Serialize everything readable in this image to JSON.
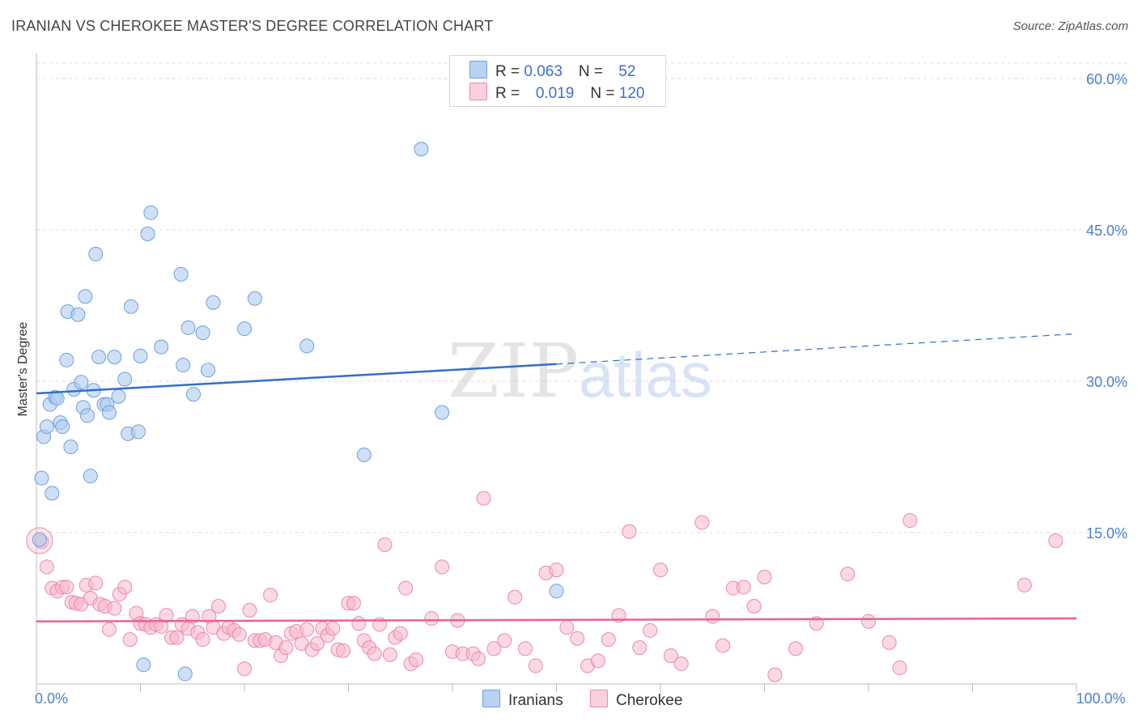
{
  "header": {
    "title": "IRANIAN VS CHEROKEE MASTER'S DEGREE CORRELATION CHART",
    "source": "Source: ZipAtlas.com"
  },
  "legend": {
    "iranians": {
      "r_label": "R = ",
      "r_value": "0.063",
      "n_label": "N = ",
      "n_value": "52"
    },
    "cherokee": {
      "r_label": "R = ",
      "r_value": "0.019",
      "n_label": "N = ",
      "n_value": "120"
    }
  },
  "bottom_legend": {
    "iranians": "Iranians",
    "cherokee": "Cherokee"
  },
  "watermark": {
    "zip": "ZIP",
    "atlas": "atlas"
  },
  "colors": {
    "iranians_fill": "#aecbf0",
    "iranians_stroke": "#6f9fdc",
    "iranians_line": "#2f6fcc",
    "cherokee_fill": "#f7b8cb",
    "cherokee_stroke": "#ea8aa8",
    "cherokee_line": "#e8638f",
    "tick": "#4a7fd4"
  },
  "chart_data": {
    "type": "scatter",
    "title": "IRANIAN VS CHEROKEE MASTER'S DEGREE CORRELATION CHART",
    "xlabel": "",
    "ylabel": "Master's Degree",
    "xlim": [
      0,
      100
    ],
    "ylim": [
      0,
      62
    ],
    "x_tick_labels": [
      {
        "value": 0,
        "label": "0.0%"
      },
      {
        "value": 100,
        "label": "100.0%"
      }
    ],
    "y_tick_labels": [
      {
        "value": 15,
        "label": "15.0%"
      },
      {
        "value": 30,
        "label": "30.0%"
      },
      {
        "value": 45,
        "label": "45.0%"
      },
      {
        "value": 60,
        "label": "60.0%"
      }
    ],
    "series": [
      {
        "name": "Iranians",
        "r": 0.063,
        "n": 52,
        "trend": {
          "x0": 0,
          "y0": 28.8,
          "x1": 50,
          "y1": 31.7,
          "dashed_to_x": 100,
          "dashed_to_y": 34.7
        },
        "points": [
          [
            0.3,
            14.3
          ],
          [
            0.5,
            20.4
          ],
          [
            0.7,
            24.5
          ],
          [
            1.0,
            25.5
          ],
          [
            1.3,
            27.7
          ],
          [
            1.5,
            18.9
          ],
          [
            1.8,
            28.4
          ],
          [
            2.0,
            28.3
          ],
          [
            2.3,
            25.9
          ],
          [
            2.5,
            25.5
          ],
          [
            2.9,
            32.1
          ],
          [
            3.0,
            36.9
          ],
          [
            3.3,
            23.5
          ],
          [
            3.6,
            29.2
          ],
          [
            4.0,
            36.6
          ],
          [
            4.3,
            29.9
          ],
          [
            4.5,
            27.4
          ],
          [
            4.7,
            38.4
          ],
          [
            4.9,
            26.6
          ],
          [
            5.2,
            20.6
          ],
          [
            5.5,
            29.1
          ],
          [
            5.7,
            42.6
          ],
          [
            6.0,
            32.4
          ],
          [
            6.5,
            27.7
          ],
          [
            6.8,
            27.7
          ],
          [
            7.0,
            26.9
          ],
          [
            7.5,
            32.4
          ],
          [
            7.9,
            28.5
          ],
          [
            8.5,
            30.2
          ],
          [
            8.8,
            24.8
          ],
          [
            9.1,
            37.4
          ],
          [
            9.8,
            25.0
          ],
          [
            10.0,
            32.5
          ],
          [
            10.3,
            1.9
          ],
          [
            10.7,
            44.6
          ],
          [
            11.0,
            46.7
          ],
          [
            12.0,
            33.4
          ],
          [
            13.9,
            40.6
          ],
          [
            14.1,
            31.6
          ],
          [
            14.3,
            1.0
          ],
          [
            14.6,
            35.3
          ],
          [
            15.1,
            28.7
          ],
          [
            16.0,
            34.8
          ],
          [
            16.5,
            31.1
          ],
          [
            17.0,
            37.8
          ],
          [
            20.0,
            35.2
          ],
          [
            21.0,
            38.2
          ],
          [
            26.0,
            33.5
          ],
          [
            31.5,
            22.7
          ],
          [
            37.0,
            53.0
          ],
          [
            39.0,
            26.9
          ],
          [
            50.0,
            9.2
          ]
        ]
      },
      {
        "name": "Cherokee",
        "r": 0.019,
        "n": 120,
        "trend": {
          "x0": 0,
          "y0": 6.2,
          "x1": 100,
          "y1": 6.5
        },
        "points": [
          [
            0.5,
            14.1
          ],
          [
            1.0,
            11.6
          ],
          [
            1.5,
            9.5
          ],
          [
            2.0,
            9.2
          ],
          [
            2.5,
            9.6
          ],
          [
            2.9,
            9.6
          ],
          [
            3.4,
            8.1
          ],
          [
            3.8,
            8.0
          ],
          [
            4.3,
            7.9
          ],
          [
            4.8,
            9.8
          ],
          [
            5.2,
            8.5
          ],
          [
            5.7,
            10.0
          ],
          [
            6.1,
            7.9
          ],
          [
            6.6,
            7.7
          ],
          [
            7.0,
            5.4
          ],
          [
            7.5,
            7.5
          ],
          [
            8.0,
            8.9
          ],
          [
            8.5,
            9.6
          ],
          [
            9.0,
            4.4
          ],
          [
            9.6,
            7.0
          ],
          [
            10.0,
            6.0
          ],
          [
            10.5,
            5.9
          ],
          [
            11.0,
            5.6
          ],
          [
            11.5,
            5.9
          ],
          [
            12.0,
            5.7
          ],
          [
            12.5,
            6.8
          ],
          [
            13.0,
            4.6
          ],
          [
            13.5,
            4.6
          ],
          [
            14.0,
            5.9
          ],
          [
            14.6,
            5.5
          ],
          [
            15.0,
            6.7
          ],
          [
            15.5,
            5.1
          ],
          [
            16.0,
            4.4
          ],
          [
            16.6,
            6.7
          ],
          [
            17.0,
            5.6
          ],
          [
            17.5,
            7.7
          ],
          [
            18.0,
            5.0
          ],
          [
            18.5,
            5.6
          ],
          [
            19.0,
            5.3
          ],
          [
            19.5,
            4.9
          ],
          [
            20.0,
            1.5
          ],
          [
            20.5,
            7.3
          ],
          [
            21.0,
            4.3
          ],
          [
            21.5,
            4.3
          ],
          [
            22.0,
            4.4
          ],
          [
            22.5,
            8.8
          ],
          [
            23.0,
            4.1
          ],
          [
            23.5,
            2.8
          ],
          [
            24.0,
            3.6
          ],
          [
            24.5,
            5.0
          ],
          [
            25.0,
            5.2
          ],
          [
            25.5,
            4.0
          ],
          [
            26.0,
            5.4
          ],
          [
            26.5,
            3.4
          ],
          [
            27.0,
            4.0
          ],
          [
            27.5,
            5.5
          ],
          [
            28.0,
            4.8
          ],
          [
            28.5,
            5.5
          ],
          [
            29.0,
            3.4
          ],
          [
            29.5,
            3.3
          ],
          [
            30.0,
            8.0
          ],
          [
            30.5,
            8.0
          ],
          [
            31.0,
            6.0
          ],
          [
            31.5,
            4.3
          ],
          [
            32.0,
            3.6
          ],
          [
            32.5,
            3.0
          ],
          [
            33.0,
            5.9
          ],
          [
            33.5,
            13.8
          ],
          [
            34.0,
            2.9
          ],
          [
            34.5,
            4.6
          ],
          [
            35.0,
            5.0
          ],
          [
            35.5,
            9.5
          ],
          [
            36.0,
            2.0
          ],
          [
            36.5,
            2.4
          ],
          [
            38.0,
            6.5
          ],
          [
            39.0,
            11.6
          ],
          [
            40.0,
            3.2
          ],
          [
            40.5,
            6.3
          ],
          [
            41.0,
            3.0
          ],
          [
            42.0,
            3.0
          ],
          [
            42.5,
            2.5
          ],
          [
            43.0,
            18.4
          ],
          [
            44.0,
            3.5
          ],
          [
            45.0,
            4.3
          ],
          [
            46.0,
            8.6
          ],
          [
            47.0,
            3.5
          ],
          [
            48.0,
            1.8
          ],
          [
            49.0,
            11.0
          ],
          [
            50.0,
            11.3
          ],
          [
            51.0,
            5.6
          ],
          [
            52.0,
            4.5
          ],
          [
            53.0,
            1.8
          ],
          [
            54.0,
            2.3
          ],
          [
            55.0,
            4.4
          ],
          [
            56.0,
            6.8
          ],
          [
            57.0,
            15.1
          ],
          [
            58.0,
            3.6
          ],
          [
            59.0,
            5.3
          ],
          [
            60.0,
            11.3
          ],
          [
            61.0,
            2.8
          ],
          [
            62.0,
            2.0
          ],
          [
            64.0,
            16.0
          ],
          [
            65.0,
            6.7
          ],
          [
            66.0,
            3.8
          ],
          [
            67.0,
            9.5
          ],
          [
            68.0,
            9.6
          ],
          [
            69.0,
            7.7
          ],
          [
            70.0,
            10.6
          ],
          [
            71.0,
            0.9
          ],
          [
            73.0,
            3.5
          ],
          [
            75.0,
            6.0
          ],
          [
            78.0,
            10.9
          ],
          [
            80.0,
            6.2
          ],
          [
            82.0,
            4.1
          ],
          [
            83.0,
            1.6
          ],
          [
            84.0,
            16.2
          ],
          [
            95.0,
            9.8
          ],
          [
            98.0,
            14.2
          ]
        ]
      }
    ]
  }
}
